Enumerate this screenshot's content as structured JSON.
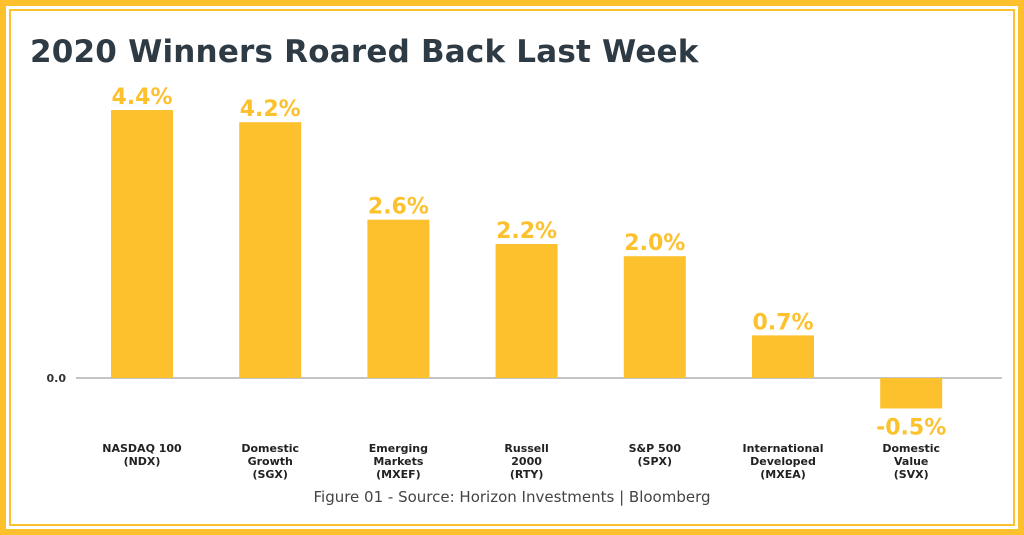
{
  "chart_data": {
    "type": "bar",
    "title": "2020 Winners Roared Back Last Week",
    "caption": "Figure 01 - Source: Horizon Investments | Bloomberg",
    "categories": [
      [
        "NASDAQ 100",
        "(NDX)"
      ],
      [
        "Domestic",
        "Growth",
        "(SGX)"
      ],
      [
        "Emerging",
        "Markets",
        "(MXEF)"
      ],
      [
        "Russell",
        "2000",
        "(RTY)"
      ],
      [
        "S&P 500",
        "(SPX)"
      ],
      [
        "International",
        "Developed",
        "(MXEA)"
      ],
      [
        "Domestic",
        "Value",
        "(SVX)"
      ]
    ],
    "values": [
      4.4,
      4.2,
      2.6,
      2.2,
      2.0,
      0.7,
      -0.5
    ],
    "value_labels": [
      "4.4%",
      "4.2%",
      "2.6%",
      "2.2%",
      "2.0%",
      "0.7%",
      "-0.5%"
    ],
    "zero_tick_label": "0.0",
    "ylim": [
      -0.5,
      4.4
    ],
    "grid": false,
    "colors": {
      "bar": "#fdc12e",
      "value_label": "#fdc12e",
      "axis": "#888888",
      "border": "#fdc12e"
    }
  }
}
